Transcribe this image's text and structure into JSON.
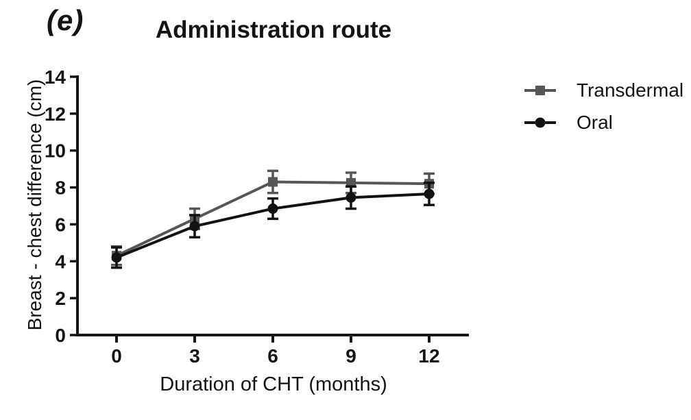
{
  "panel_label": "(e)",
  "header": {
    "title": "Administration route"
  },
  "chart_data": {
    "type": "line",
    "title": "Administration route",
    "xlabel": "Duration of CHT (months)",
    "ylabel": "Breast - chest difference (cm)",
    "x": [
      0,
      3,
      6,
      9,
      12
    ],
    "xticks": [
      0,
      3,
      6,
      9,
      12
    ],
    "yticks": [
      0,
      2,
      4,
      6,
      8,
      10,
      12,
      14
    ],
    "xlim": [
      -1.5,
      13.5
    ],
    "ylim": [
      0,
      14
    ],
    "grid": false,
    "error_bars": true,
    "legend_position": "right",
    "axis_color": "#141414",
    "series": [
      {
        "name": "Transdermal",
        "marker": "square",
        "color": "#565656",
        "values": [
          4.3,
          6.3,
          8.3,
          8.25,
          8.2
        ],
        "errors": [
          0.5,
          0.55,
          0.6,
          0.55,
          0.55
        ]
      },
      {
        "name": "Oral",
        "marker": "circle",
        "color": "#121212",
        "values": [
          4.2,
          5.9,
          6.85,
          7.45,
          7.65
        ],
        "errors": [
          0.55,
          0.6,
          0.55,
          0.6,
          0.6
        ]
      }
    ]
  }
}
